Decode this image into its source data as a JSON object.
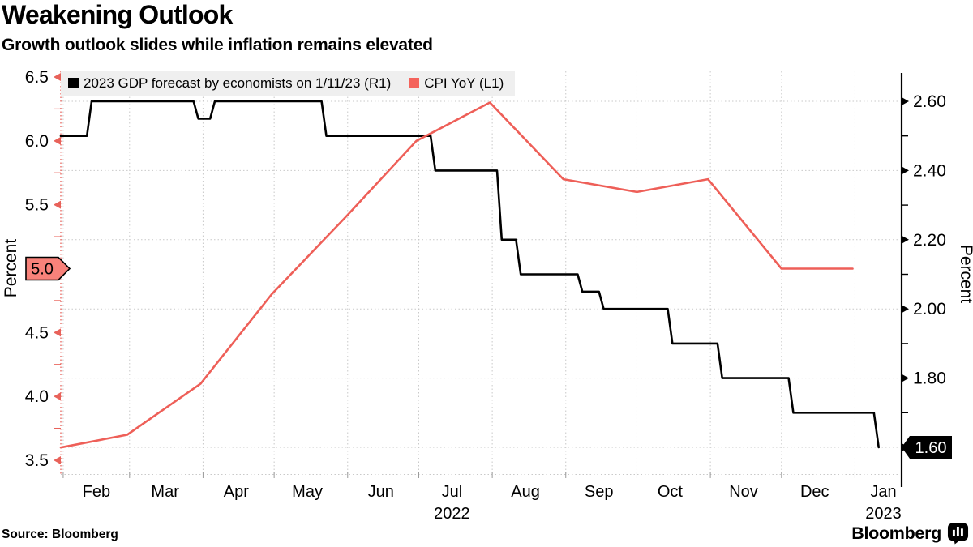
{
  "header": {
    "title": "Weakening Outlook",
    "subtitle": "Growth outlook slides while inflation remains elevated"
  },
  "legend": {
    "background": "#efefef",
    "items": [
      {
        "label": "2023 GDP forecast by economists on 1/11/23 (R1)",
        "swatch_color": "#000000"
      },
      {
        "label": "CPI YoY (L1)",
        "swatch_color": "#f4635c"
      }
    ]
  },
  "footer": {
    "source": "Source: Bloomberg",
    "brand": "Bloomberg",
    "brand_icon": "bloomberg-bars-icon"
  },
  "chart_data": {
    "type": "line",
    "title": "Weakening Outlook",
    "subtitle": "Growth outlook slides while inflation remains elevated",
    "grid": "dotted",
    "x_axis": {
      "note": "x measured in days from 2022-01-31",
      "domain_days": [
        0,
        354
      ],
      "month_gridline_days": [
        1,
        29,
        60,
        90,
        121,
        151,
        182,
        213,
        243,
        274,
        304,
        335
      ],
      "month_tick_labels": [
        {
          "label": "Feb",
          "day": 15
        },
        {
          "label": "Mar",
          "day": 44
        },
        {
          "label": "Apr",
          "day": 74
        },
        {
          "label": "May",
          "day": 104
        },
        {
          "label": "Jun",
          "day": 135
        },
        {
          "label": "Jul",
          "day": 165
        },
        {
          "label": "Aug",
          "day": 196
        },
        {
          "label": "Sep",
          "day": 227
        },
        {
          "label": "Oct",
          "day": 257
        },
        {
          "label": "Nov",
          "day": 288
        },
        {
          "label": "Dec",
          "day": 318
        },
        {
          "label": "Jan",
          "day": 347
        }
      ],
      "year_labels": [
        {
          "label": "2022",
          "day": 165
        },
        {
          "label": "2023",
          "day": 347
        }
      ]
    },
    "left_axis": {
      "title": "Percent",
      "attached_series": "CPI YoY (L1)",
      "range": [
        3.5,
        6.5
      ],
      "major_ticks": [
        "3.5",
        "4.0",
        "4.5",
        "5.0",
        "5.5",
        "6.0",
        "6.5"
      ],
      "minor_ticks": [
        3.75,
        4.25,
        4.75,
        5.25,
        5.75,
        6.25
      ],
      "color": "#e8625a",
      "latest_value_badge": {
        "text": "5.0",
        "value": 5.0,
        "fill": "#f8827a",
        "text_color": "#000000"
      }
    },
    "right_axis": {
      "title": "Percent",
      "attached_series": "2023 GDP forecast (R1)",
      "tick_range": [
        1.6,
        2.6
      ],
      "major_ticks": [
        "1.60",
        "1.80",
        "2.00",
        "2.20",
        "2.40",
        "2.60"
      ],
      "minor_ticks": [
        1.7,
        1.9,
        2.1,
        2.3,
        2.5
      ],
      "color": "#000000",
      "latest_value_badge": {
        "text": "1.60",
        "value": 1.6,
        "fill": "#000000",
        "text_color": "#ffffff"
      }
    },
    "series": [
      {
        "name": "2023 GDP forecast by economists on 1/11/23",
        "axis": "R1",
        "color": "#000000",
        "style": "step",
        "points_day_value": [
          [
            0,
            2.5
          ],
          [
            11,
            2.5
          ],
          [
            13,
            2.6
          ],
          [
            56,
            2.6
          ],
          [
            58,
            2.55
          ],
          [
            63,
            2.55
          ],
          [
            65,
            2.6
          ],
          [
            110,
            2.6
          ],
          [
            112,
            2.5
          ],
          [
            156,
            2.5
          ],
          [
            158,
            2.4
          ],
          [
            184,
            2.4
          ],
          [
            186,
            2.2
          ],
          [
            192,
            2.2
          ],
          [
            194,
            2.1
          ],
          [
            218,
            2.1
          ],
          [
            220,
            2.05
          ],
          [
            227,
            2.05
          ],
          [
            229,
            2.0
          ],
          [
            256,
            2.0
          ],
          [
            258,
            1.9
          ],
          [
            277,
            1.9
          ],
          [
            279,
            1.8
          ],
          [
            307,
            1.8
          ],
          [
            309,
            1.7
          ],
          [
            343,
            1.7
          ],
          [
            345,
            1.6
          ]
        ]
      },
      {
        "name": "CPI YoY",
        "axis": "L1",
        "color": "#ee5f58",
        "style": "line",
        "points_day_value": [
          [
            0,
            3.6
          ],
          [
            28,
            3.7
          ],
          [
            59,
            4.1
          ],
          [
            89,
            4.8
          ],
          [
            120,
            5.4
          ],
          [
            150,
            6.0
          ],
          [
            181,
            6.3
          ],
          [
            212,
            5.7
          ],
          [
            243,
            5.6
          ],
          [
            273,
            5.7
          ],
          [
            304,
            5.0
          ],
          [
            334,
            5.0
          ]
        ],
        "monthly_values": {
          "months": [
            "Jan",
            "Feb",
            "Mar",
            "Apr",
            "May",
            "Jun",
            "Jul",
            "Aug",
            "Sep",
            "Oct",
            "Nov",
            "Dec"
          ],
          "values": [
            3.6,
            3.7,
            4.1,
            4.8,
            5.4,
            6.0,
            6.3,
            5.7,
            5.6,
            5.7,
            5.0,
            5.0
          ]
        }
      }
    ]
  }
}
